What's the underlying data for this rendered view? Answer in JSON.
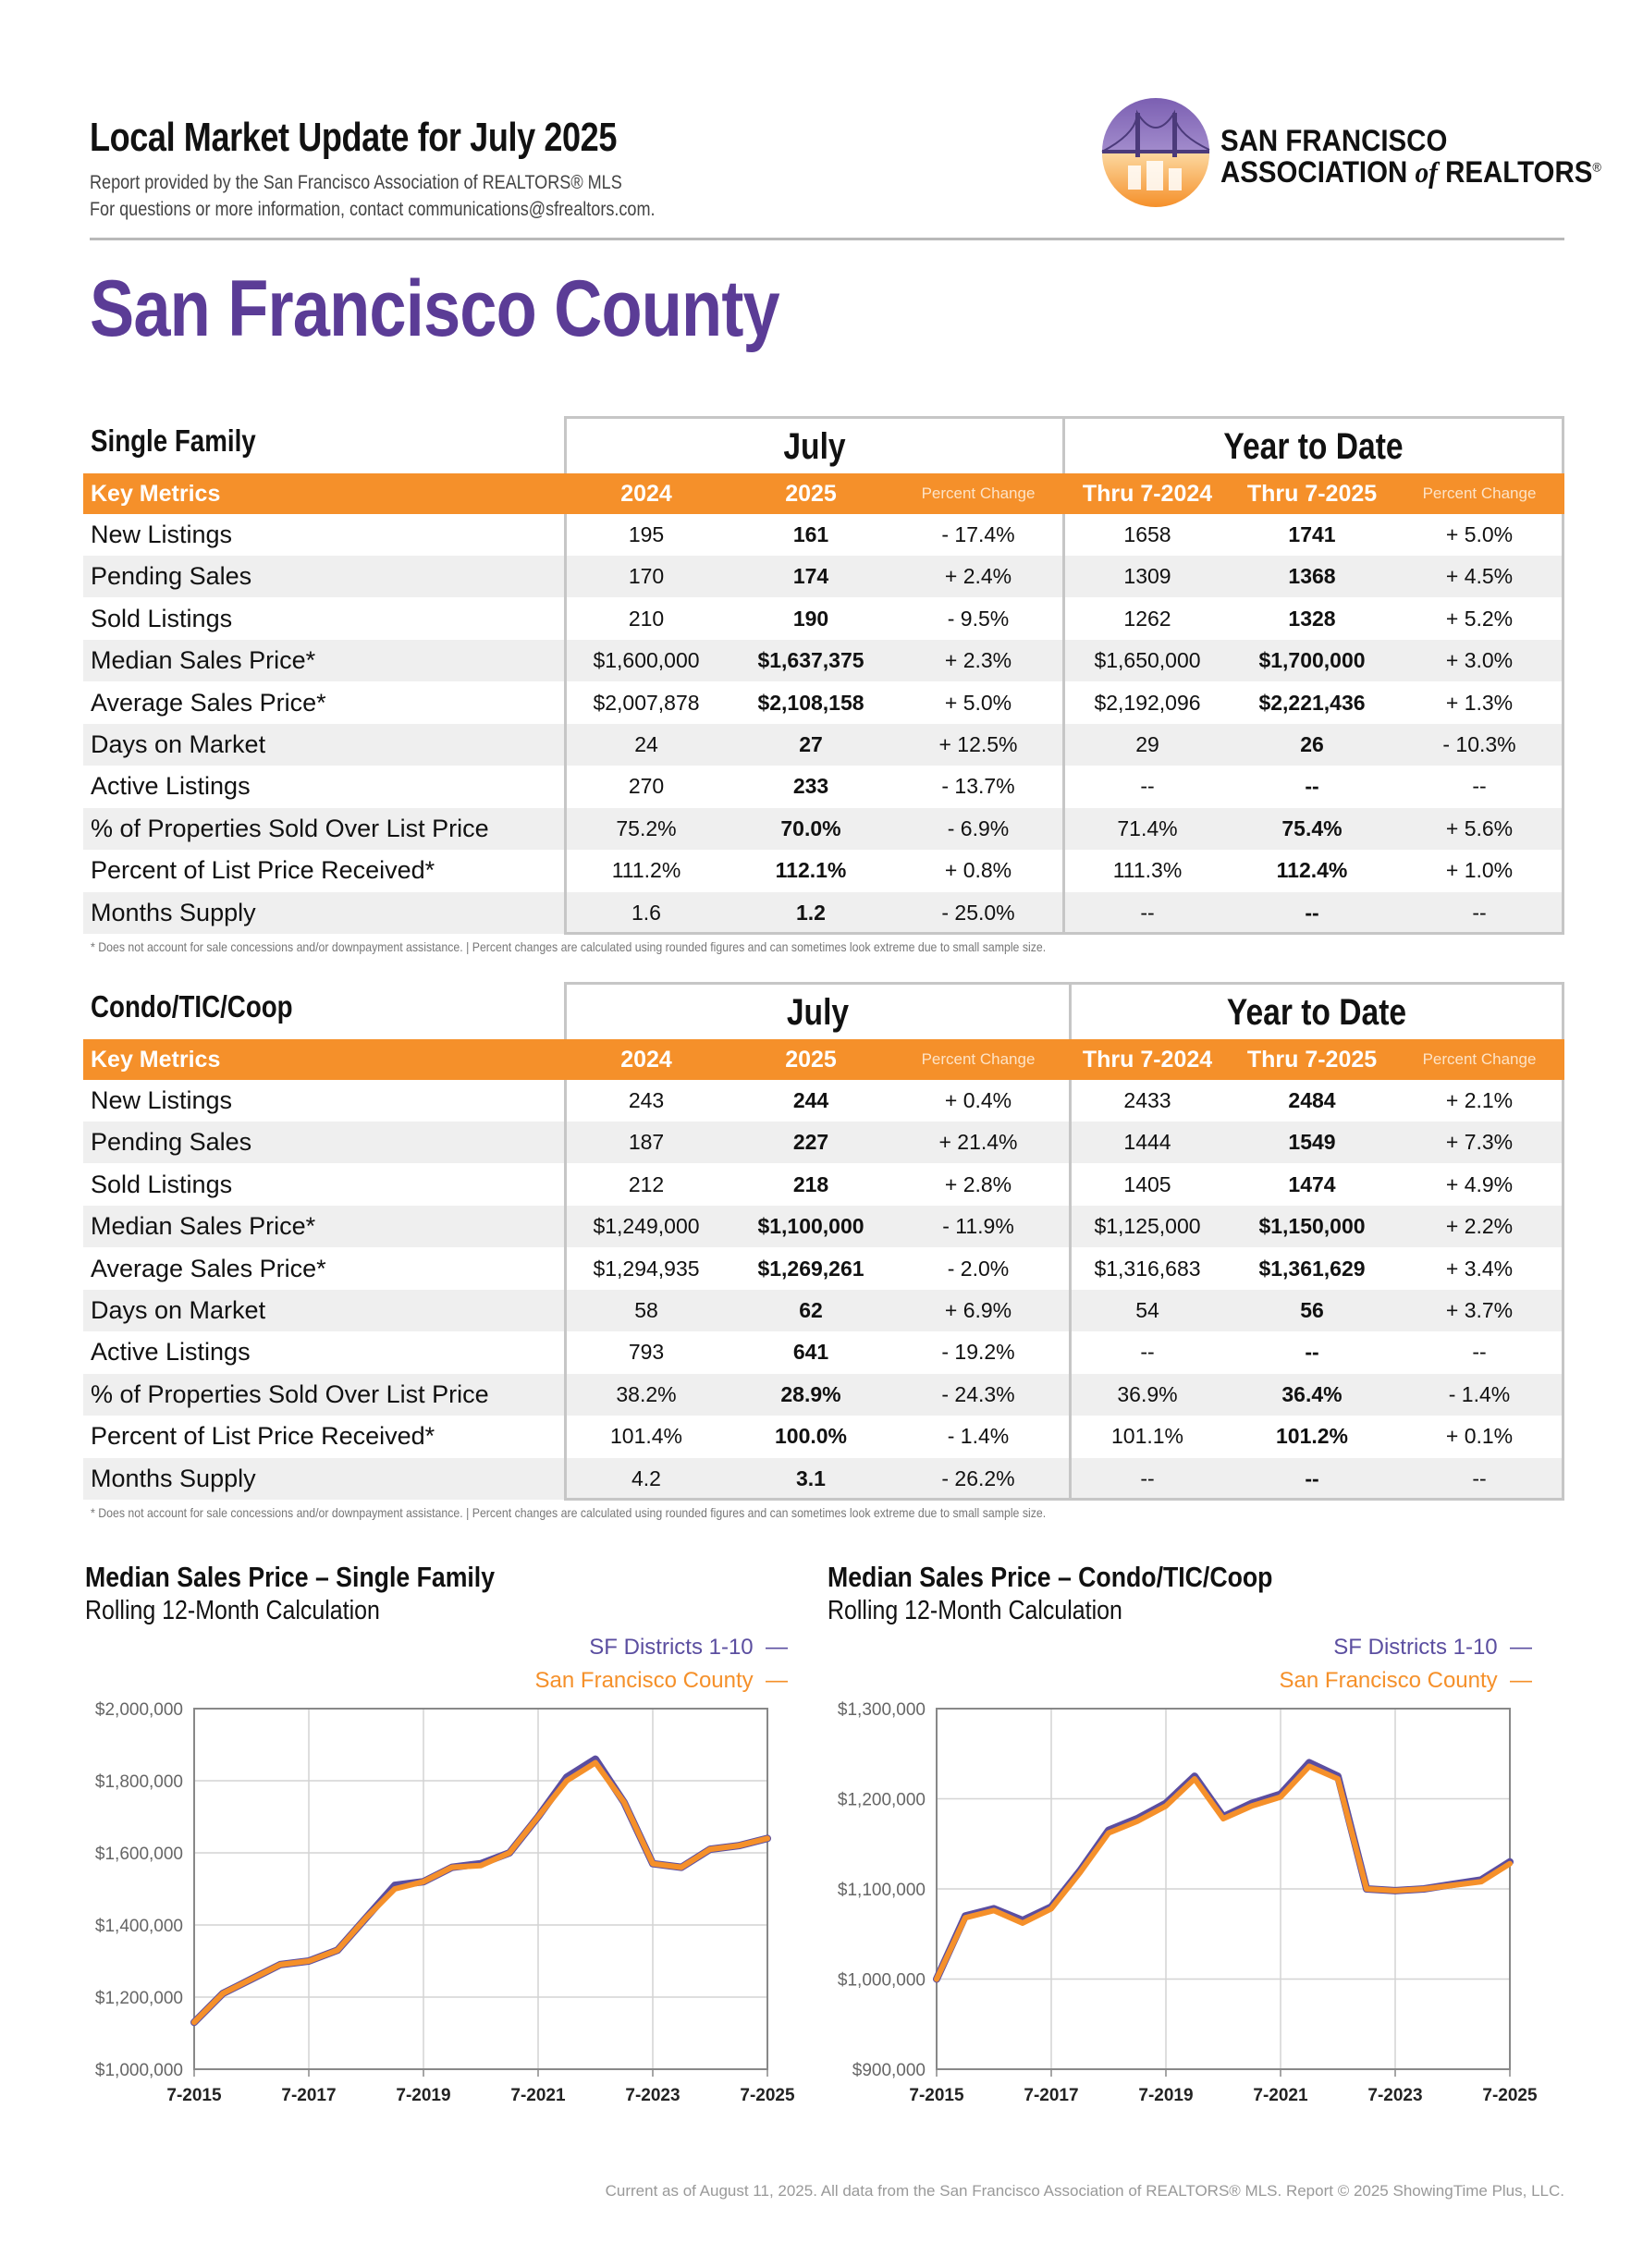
{
  "header": {
    "title": "Local Market Update for July 2025",
    "sub1": "Report provided by the San Francisco Association of REALTORS® MLS",
    "sub2": "For questions or more information, contact communications@sfrealtors.com.",
    "logo_line1": "SAN FRANCISCO",
    "logo_line2a": "ASSOCIATION ",
    "logo_line2b": "of",
    "logo_line2c": " REALTORS",
    "logo_reg": "®"
  },
  "county": "San Francisco County",
  "colors": {
    "purple": "#5b3c96",
    "orange": "#f5902a",
    "series_sf": "#5b4ea0"
  },
  "tables": [
    {
      "category": "Single Family",
      "group_july": "July",
      "group_ytd": "Year to Date",
      "header": [
        "Key Metrics",
        "2024",
        "2025",
        "Percent Change",
        "Thru 7-2024",
        "Thru 7-2025",
        "Percent Change"
      ],
      "rows": [
        [
          "New Listings",
          "195",
          "161",
          "- 17.4%",
          "1658",
          "1741",
          "+ 5.0%"
        ],
        [
          "Pending Sales",
          "170",
          "174",
          "+ 2.4%",
          "1309",
          "1368",
          "+ 4.5%"
        ],
        [
          "Sold Listings",
          "210",
          "190",
          "- 9.5%",
          "1262",
          "1328",
          "+ 5.2%"
        ],
        [
          "Median Sales Price*",
          "$1,600,000",
          "$1,637,375",
          "+ 2.3%",
          "$1,650,000",
          "$1,700,000",
          "+ 3.0%"
        ],
        [
          "Average Sales Price*",
          "$2,007,878",
          "$2,108,158",
          "+ 5.0%",
          "$2,192,096",
          "$2,221,436",
          "+ 1.3%"
        ],
        [
          "Days on Market",
          "24",
          "27",
          "+ 12.5%",
          "29",
          "26",
          "- 10.3%"
        ],
        [
          "Active Listings",
          "270",
          "233",
          "- 13.7%",
          "--",
          "--",
          "--"
        ],
        [
          "% of Properties Sold Over List Price",
          "75.2%",
          "70.0%",
          "- 6.9%",
          "71.4%",
          "75.4%",
          "+ 5.6%"
        ],
        [
          "Percent of List Price Received*",
          "111.2%",
          "112.1%",
          "+ 0.8%",
          "111.3%",
          "112.4%",
          "+ 1.0%"
        ],
        [
          "Months Supply",
          "1.6",
          "1.2",
          "- 25.0%",
          "--",
          "--",
          "--"
        ]
      ],
      "note": "* Does not account for sale concessions and/or downpayment assistance.  |  Percent changes are calculated using rounded figures and can sometimes look extreme due to small sample size."
    },
    {
      "category": "Condo/TIC/Coop",
      "group_july": "July",
      "group_ytd": "Year to Date",
      "header": [
        "Key Metrics",
        "2024",
        "2025",
        "Percent Change",
        "Thru 7-2024",
        "Thru 7-2025",
        "Percent Change"
      ],
      "rows": [
        [
          "New Listings",
          "243",
          "244",
          "+ 0.4%",
          "2433",
          "2484",
          "+ 2.1%"
        ],
        [
          "Pending Sales",
          "187",
          "227",
          "+ 21.4%",
          "1444",
          "1549",
          "+ 7.3%"
        ],
        [
          "Sold Listings",
          "212",
          "218",
          "+ 2.8%",
          "1405",
          "1474",
          "+ 4.9%"
        ],
        [
          "Median Sales Price*",
          "$1,249,000",
          "$1,100,000",
          "- 11.9%",
          "$1,125,000",
          "$1,150,000",
          "+ 2.2%"
        ],
        [
          "Average Sales Price*",
          "$1,294,935",
          "$1,269,261",
          "- 2.0%",
          "$1,316,683",
          "$1,361,629",
          "+ 3.4%"
        ],
        [
          "Days on Market",
          "58",
          "62",
          "+ 6.9%",
          "54",
          "56",
          "+ 3.7%"
        ],
        [
          "Active Listings",
          "793",
          "641",
          "- 19.2%",
          "--",
          "--",
          "--"
        ],
        [
          "% of Properties Sold Over List Price",
          "38.2%",
          "28.9%",
          "- 24.3%",
          "36.9%",
          "36.4%",
          "- 1.4%"
        ],
        [
          "Percent of List Price Received*",
          "101.4%",
          "100.0%",
          "- 1.4%",
          "101.1%",
          "101.2%",
          "+ 0.1%"
        ],
        [
          "Months Supply",
          "4.2",
          "3.1",
          "- 26.2%",
          "--",
          "--",
          "--"
        ]
      ],
      "note": "* Does not account for sale concessions and/or downpayment assistance.  |  Percent changes are calculated using rounded figures and can sometimes look extreme due to small sample size."
    }
  ],
  "chart_data": [
    {
      "type": "line",
      "title": "Median Sales Price – Single Family",
      "subtitle": "Rolling 12-Month Calculation",
      "ylim": [
        1000000,
        2000000
      ],
      "yticks": [
        "$2,000,000",
        "$1,800,000",
        "$1,600,000",
        "$1,400,000",
        "$1,200,000",
        "$1,000,000"
      ],
      "xticks": [
        "7-2015",
        "7-2017",
        "7-2019",
        "7-2021",
        "7-2023",
        "7-2025"
      ],
      "grid": true,
      "legend_position": "top-right",
      "x": [
        "7-2015",
        "1-2016",
        "7-2016",
        "1-2017",
        "7-2017",
        "1-2018",
        "7-2018",
        "1-2019",
        "7-2019",
        "1-2020",
        "7-2020",
        "1-2021",
        "7-2021",
        "1-2022",
        "7-2022",
        "1-2023",
        "7-2023",
        "1-2024",
        "7-2024",
        "1-2025",
        "7-2025"
      ],
      "series": [
        {
          "name": "SF Districts 1-10",
          "color": "#5b4ea0",
          "values": [
            1130000,
            1210000,
            1250000,
            1290000,
            1300000,
            1330000,
            1420000,
            1510000,
            1520000,
            1560000,
            1570000,
            1600000,
            1700000,
            1810000,
            1860000,
            1740000,
            1570000,
            1560000,
            1610000,
            1620000,
            1640000
          ]
        },
        {
          "name": "San Francisco County",
          "color": "#f5902a",
          "values": [
            1130000,
            1210000,
            1250000,
            1290000,
            1300000,
            1330000,
            1420000,
            1500000,
            1520000,
            1560000,
            1565000,
            1600000,
            1700000,
            1800000,
            1850000,
            1740000,
            1570000,
            1560000,
            1610000,
            1620000,
            1640000
          ]
        }
      ]
    },
    {
      "type": "line",
      "title": "Median Sales Price – Condo/TIC/Coop",
      "subtitle": "Rolling 12-Month Calculation",
      "ylim": [
        900000,
        1300000
      ],
      "yticks": [
        "$1,300,000",
        "$1,200,000",
        "$1,100,000",
        "$1,000,000",
        "$900,000"
      ],
      "xticks": [
        "7-2015",
        "7-2017",
        "7-2019",
        "7-2021",
        "7-2023",
        "7-2025"
      ],
      "grid": true,
      "legend_position": "top-right",
      "x": [
        "7-2015",
        "1-2016",
        "7-2016",
        "1-2017",
        "7-2017",
        "1-2018",
        "7-2018",
        "1-2019",
        "7-2019",
        "1-2020",
        "7-2020",
        "1-2021",
        "7-2021",
        "1-2022",
        "7-2022",
        "1-2023",
        "7-2023",
        "1-2024",
        "7-2024",
        "1-2025",
        "7-2025"
      ],
      "series": [
        {
          "name": "SF Districts 1-10",
          "color": "#5b4ea0",
          "values": [
            1000000,
            1070000,
            1078000,
            1065000,
            1080000,
            1120000,
            1165000,
            1178000,
            1195000,
            1225000,
            1180000,
            1195000,
            1205000,
            1240000,
            1225000,
            1100000,
            1098000,
            1100000,
            1105000,
            1110000,
            1130000
          ]
        },
        {
          "name": "San Francisco County",
          "color": "#f5902a",
          "values": [
            1000000,
            1068000,
            1076000,
            1062000,
            1078000,
            1118000,
            1162000,
            1175000,
            1192000,
            1222000,
            1178000,
            1192000,
            1202000,
            1236000,
            1222000,
            1100000,
            1098000,
            1100000,
            1104000,
            1108000,
            1128000
          ]
        }
      ]
    }
  ],
  "footer": "Current as of August 11, 2025. All data from the San Francisco Association of REALTORS® MLS. Report © 2025 ShowingTime Plus, LLC."
}
